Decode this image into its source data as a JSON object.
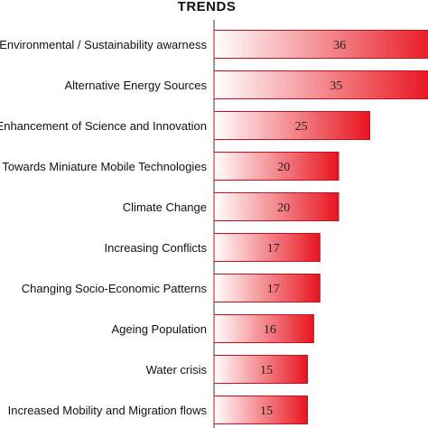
{
  "chart_data": {
    "type": "bar",
    "orientation": "horizontal",
    "title": "TRENDS",
    "xlabel": "",
    "ylabel": "",
    "categories": [
      "Environmental / Sustainability awarness",
      "Alternative Energy Sources",
      "Enhancement of Science and Innovation",
      "Towards Miniature Mobile Technologies",
      "Climate Change",
      "Increasing Conflicts",
      "Changing Socio-Economic Patterns",
      "Ageing Population",
      "Water crisis",
      "Increased Mobility and Migration flows"
    ],
    "values": [
      36,
      35,
      25,
      20,
      20,
      17,
      17,
      16,
      15,
      15
    ],
    "xlim": [
      0,
      36
    ],
    "grid": false,
    "legend": "none",
    "colors": {
      "bar_start": "#ffffff",
      "bar_end": "#e8141f",
      "bar_border": "#c8101a",
      "text": "#111111"
    }
  }
}
